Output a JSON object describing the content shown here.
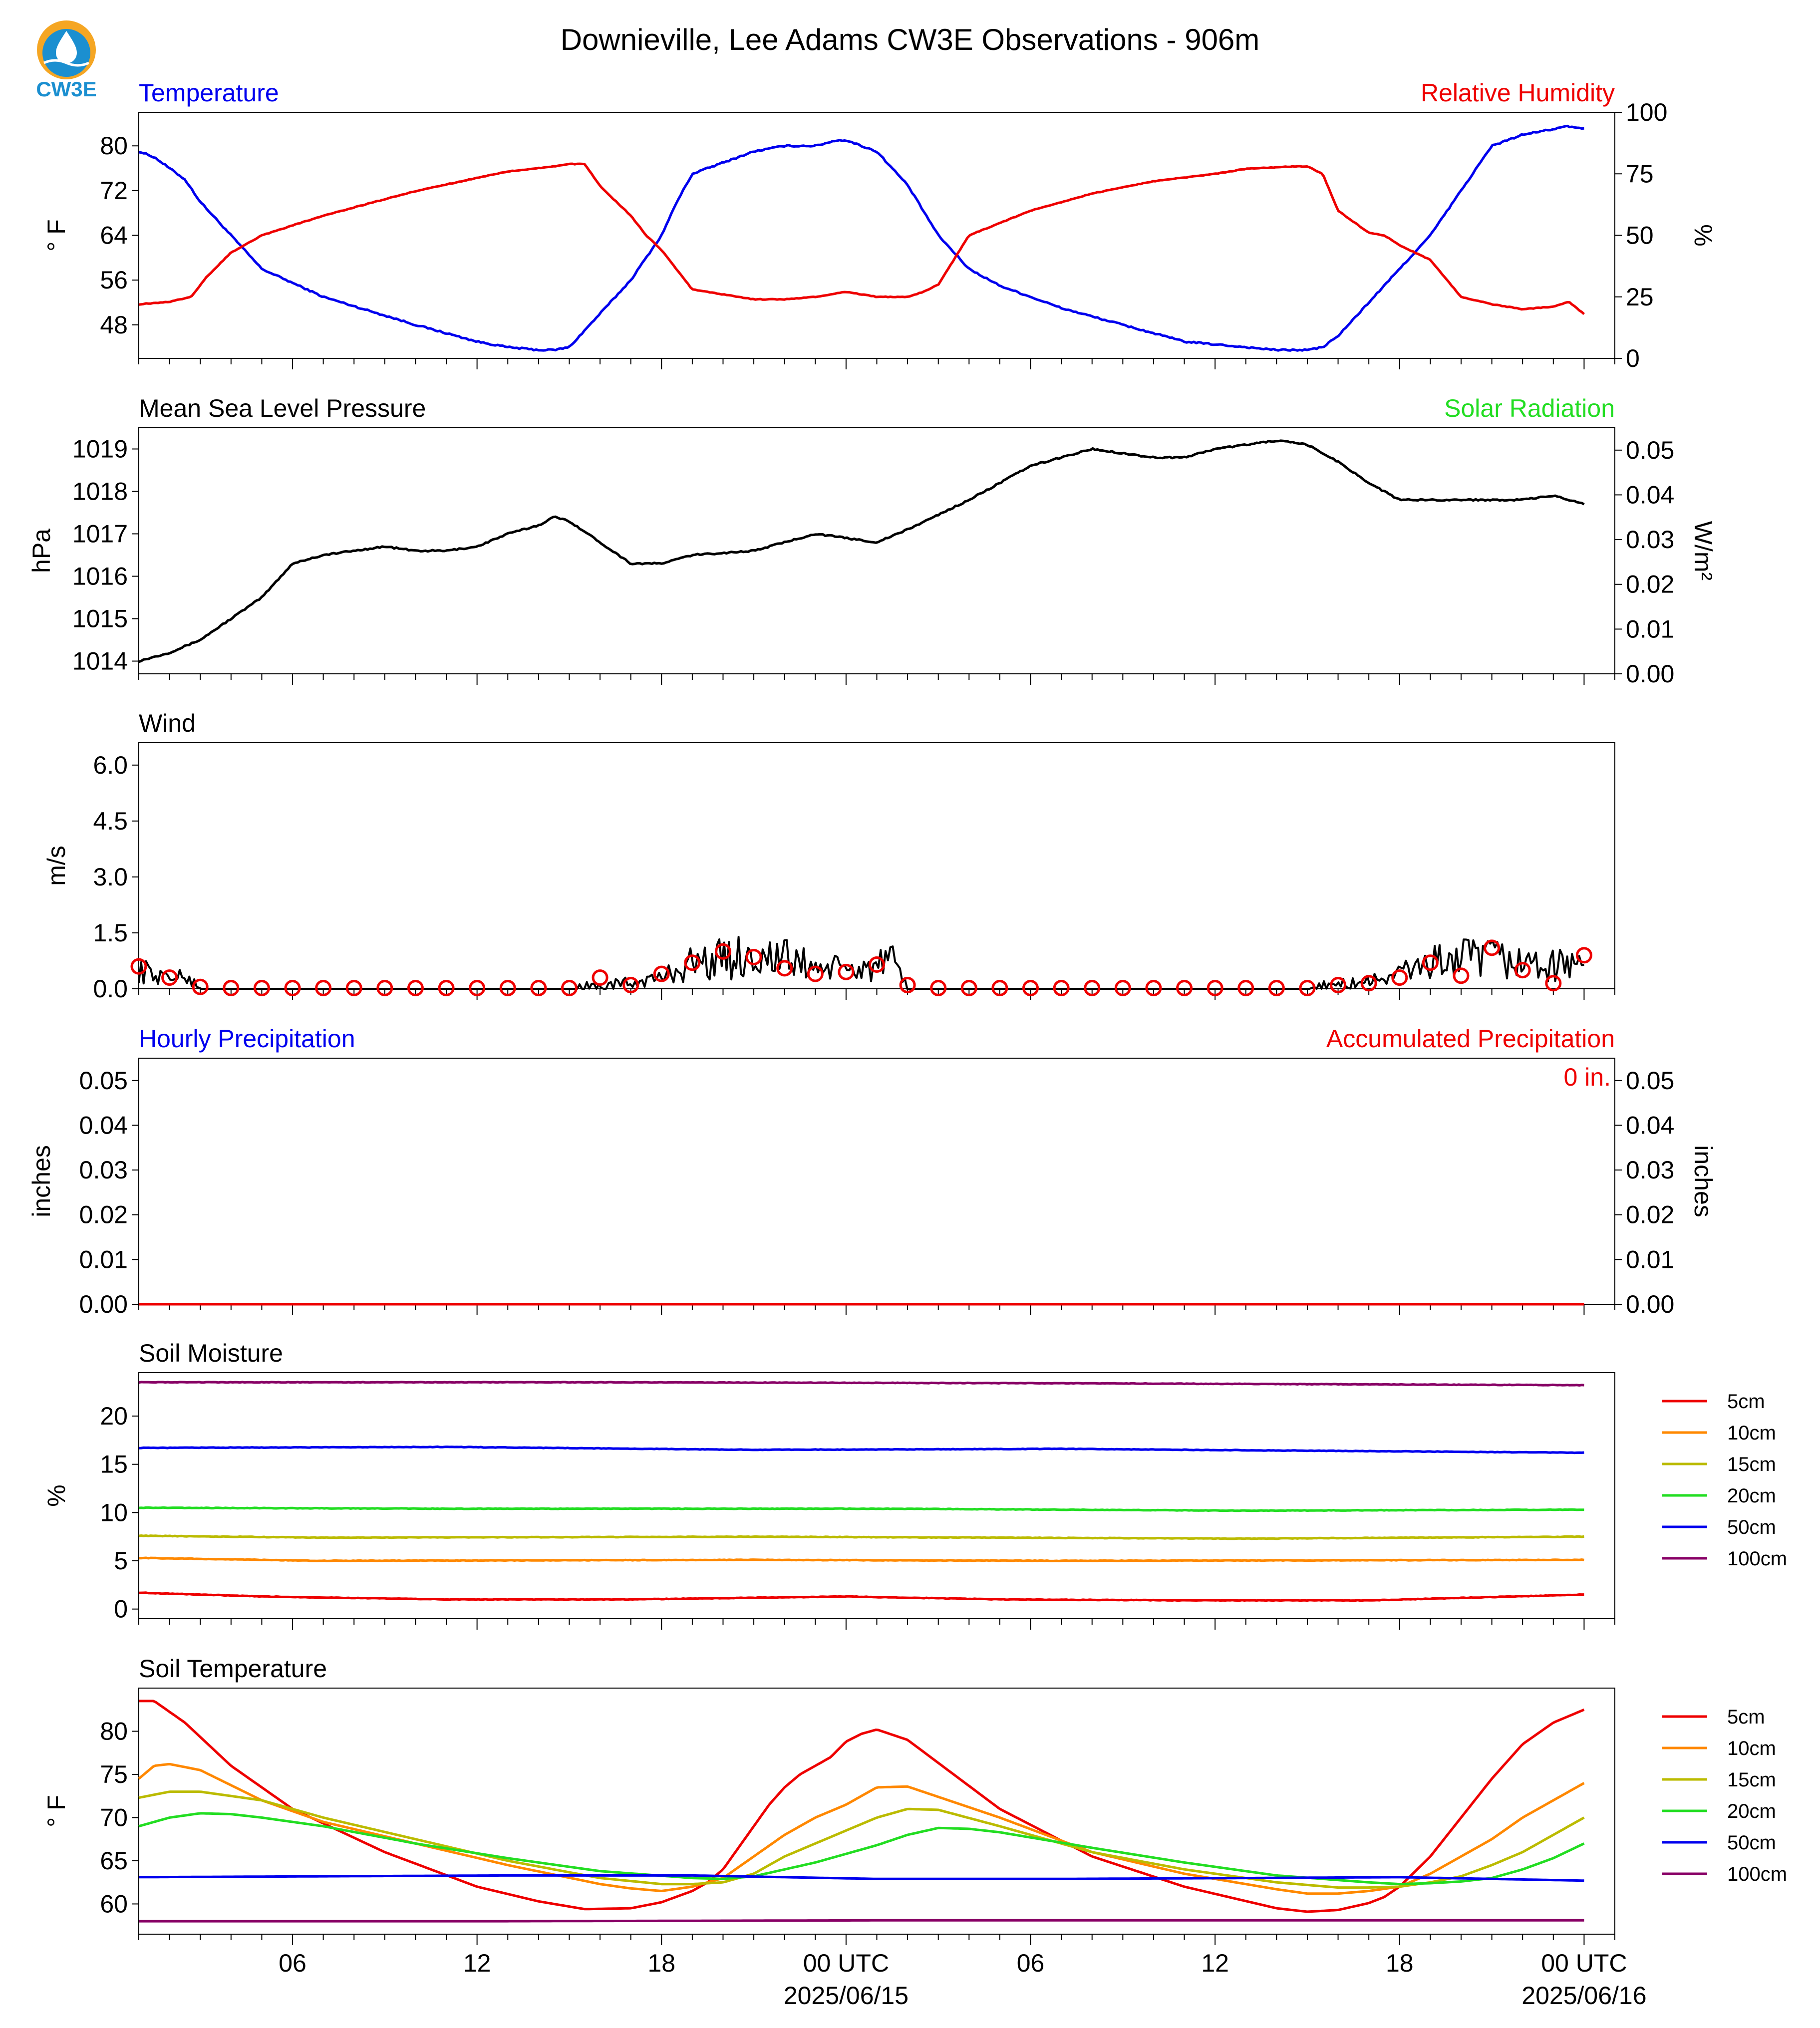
{
  "title": "Downieville, Lee Adams CW3E Observations - 906m",
  "logo": {
    "text": "CW3E",
    "icon": "water-drop-logo"
  },
  "colors": {
    "blue": "#0000ee",
    "red": "#ee0000",
    "green": "#22dd22",
    "black": "#000000"
  },
  "x_axis": {
    "hour_span": 48,
    "labels": [
      {
        "t": 5,
        "label": "06"
      },
      {
        "t": 11,
        "label": "12"
      },
      {
        "t": 17,
        "label": "18"
      },
      {
        "t": 23,
        "label": "00 UTC",
        "sub": "2025/06/15"
      },
      {
        "t": 29,
        "label": "06"
      },
      {
        "t": 35,
        "label": "12"
      },
      {
        "t": 41,
        "label": "18"
      },
      {
        "t": 47,
        "label": "00 UTC",
        "sub": "2025/06/16"
      }
    ]
  },
  "panels": {
    "temperature": {
      "left_title": "Temperature",
      "right_title": "Relative Humidity",
      "left_unit": "° F",
      "right_unit": "%"
    },
    "pressure": {
      "left_title": "Mean Sea Level Pressure",
      "right_title": "Solar Radiation",
      "left_unit": "hPa",
      "right_unit": "W/m²"
    },
    "wind": {
      "left_title": "Wind",
      "left_unit": "m/s"
    },
    "precip": {
      "left_title": "Hourly Precipitation",
      "right_title": "Accumulated Precipitation",
      "left_unit": "inches",
      "right_unit": "inches",
      "accum_label": "0 in."
    },
    "soil_moisture": {
      "left_title": "Soil Moisture",
      "left_unit": "%"
    },
    "soil_temperature": {
      "left_title": "Soil Temperature",
      "left_unit": "° F"
    }
  },
  "chart_data": [
    {
      "type": "line",
      "title": "Temperature / Relative Humidity",
      "ylabel": "° F",
      "ylabel_right": "%",
      "ylim": [
        42,
        86
      ],
      "yticks": [
        48,
        56,
        64,
        72,
        80
      ],
      "ylim_right": [
        0,
        100
      ],
      "yticks_right": [
        0,
        25,
        50,
        75,
        100
      ],
      "series": [
        {
          "name": "Temperature",
          "color": "#0000ee",
          "axis": "left",
          "t": [
            0,
            0.5,
            1.5,
            2,
            3,
            4,
            6,
            9,
            11,
            12,
            13,
            13.5,
            14,
            15,
            16,
            17,
            17.5,
            18,
            20,
            21,
            22,
            22.7,
            23,
            23.5,
            24,
            25,
            26,
            27,
            28,
            30,
            32,
            34,
            36,
            37,
            38,
            38.5,
            39,
            40,
            41,
            42,
            43,
            44,
            45,
            46,
            46.5,
            47
          ],
          "v": [
            79,
            78,
            74,
            70,
            64,
            58,
            53,
            48,
            45,
            44,
            43.5,
            43.5,
            44,
            50,
            56,
            64,
            70,
            75,
            79,
            80,
            80,
            81,
            81,
            80,
            79,
            73,
            64,
            58,
            55,
            51,
            48,
            45,
            44,
            43.5,
            43.5,
            44,
            46,
            52,
            58,
            64,
            72,
            80,
            82,
            83,
            83.5,
            83
          ]
        },
        {
          "name": "Relative Humidity",
          "color": "#ee0000",
          "axis": "right",
          "t": [
            0,
            1,
            1.7,
            2.2,
            3,
            4,
            6,
            9,
            12,
            13.5,
            14,
            14.5,
            15,
            16,
            16.5,
            17,
            18,
            20,
            21,
            22,
            23,
            24,
            25,
            25.5,
            26,
            27,
            29,
            31,
            33,
            35,
            36,
            37.5,
            38,
            38.5,
            39,
            40,
            40.5,
            41,
            42,
            43,
            44,
            45,
            46,
            46.5,
            47
          ],
          "v": [
            22,
            23,
            25,
            33,
            43,
            50,
            58,
            68,
            76,
            78,
            79,
            79,
            70,
            58,
            50,
            44,
            28,
            24,
            24,
            25,
            27,
            25,
            25,
            27,
            30,
            50,
            60,
            67,
            72,
            75,
            77,
            78,
            78,
            75,
            60,
            51,
            50,
            46,
            40,
            25,
            22,
            20,
            21,
            23,
            18
          ]
        }
      ]
    },
    {
      "type": "line",
      "title": "Mean Sea Level Pressure / Solar Radiation",
      "ylabel": "hPa",
      "ylabel_right": "W/m²",
      "ylim": [
        1013.7,
        1019.5
      ],
      "yticks": [
        1014,
        1015,
        1016,
        1017,
        1018,
        1019
      ],
      "ylim_right": [
        0,
        0.055
      ],
      "yticks_right": [
        0.0,
        0.01,
        0.02,
        0.03,
        0.04,
        0.05
      ],
      "series": [
        {
          "name": "Pressure",
          "color": "#000000",
          "axis": "left",
          "t": [
            0,
            1,
            2,
            4,
            5,
            6,
            8,
            9,
            10,
            11,
            12,
            13,
            13.5,
            14,
            15,
            16,
            17,
            18,
            20,
            22,
            24,
            25,
            27,
            28,
            29,
            30,
            31,
            32,
            33,
            34,
            35,
            36,
            37,
            38,
            39,
            40,
            41,
            43,
            44,
            45,
            46,
            47
          ],
          "v": [
            1014.0,
            1014.2,
            1014.5,
            1015.5,
            1016.3,
            1016.5,
            1016.7,
            1016.6,
            1016.6,
            1016.7,
            1017.0,
            1017.2,
            1017.4,
            1017.3,
            1016.8,
            1016.3,
            1016.3,
            1016.5,
            1016.6,
            1017.0,
            1016.8,
            1017.1,
            1017.8,
            1018.2,
            1018.6,
            1018.8,
            1019.0,
            1018.9,
            1018.8,
            1018.8,
            1019.0,
            1019.1,
            1019.2,
            1019.1,
            1018.7,
            1018.2,
            1017.8,
            1017.8,
            1017.8,
            1017.8,
            1017.9,
            1017.7
          ]
        }
      ]
    },
    {
      "type": "line",
      "title": "Wind",
      "ylabel": "m/s",
      "ylim": [
        0,
        6.6
      ],
      "yticks": [
        0.0,
        1.5,
        3.0,
        4.5,
        6.0
      ],
      "series": [
        {
          "name": "Wind speed",
          "color": "#000000",
          "axis": "left",
          "noisy": true,
          "t": [
            0,
            0.5,
            1,
            1.5,
            1.8,
            2,
            14,
            15,
            16,
            17,
            17.5,
            18,
            19,
            20,
            21,
            22,
            23,
            24,
            24.5,
            25,
            38,
            39,
            40,
            41,
            41.5,
            42,
            43,
            44,
            45,
            46,
            47
          ],
          "v": [
            0.5,
            0.4,
            0.3,
            0.3,
            0.2,
            0.0,
            0.0,
            0.05,
            0.15,
            0.3,
            0.5,
            0.7,
            0.8,
            0.9,
            0.8,
            0.6,
            0.5,
            0.6,
            0.7,
            0.0,
            0.0,
            0.1,
            0.2,
            0.4,
            0.6,
            0.7,
            0.8,
            0.8,
            0.7,
            0.6,
            0.8
          ]
        },
        {
          "name": "Gust (hourly)",
          "color": "#ee0000",
          "axis": "left",
          "markers": "circle",
          "t": [
            0,
            1,
            2,
            3,
            4,
            5,
            6,
            7,
            8,
            9,
            10,
            11,
            12,
            13,
            14,
            15,
            16,
            17,
            18,
            19,
            20,
            21,
            22,
            23,
            24,
            25,
            26,
            27,
            28,
            29,
            30,
            31,
            32,
            33,
            34,
            35,
            36,
            37,
            38,
            39,
            40,
            41,
            42,
            43,
            44,
            45,
            46,
            47
          ],
          "v": [
            0.6,
            0.3,
            0.05,
            0.02,
            0.02,
            0.02,
            0.02,
            0.02,
            0.02,
            0.02,
            0.02,
            0.02,
            0.02,
            0.02,
            0.02,
            0.3,
            0.1,
            0.4,
            0.7,
            1.0,
            0.85,
            0.55,
            0.4,
            0.45,
            0.65,
            0.1,
            0.02,
            0.02,
            0.02,
            0.02,
            0.02,
            0.02,
            0.02,
            0.02,
            0.02,
            0.02,
            0.02,
            0.02,
            0.02,
            0.1,
            0.15,
            0.3,
            0.7,
            0.35,
            1.1,
            0.5,
            0.15,
            0.9
          ]
        }
      ]
    },
    {
      "type": "line",
      "title": "Hourly Precipitation / Accumulated Precipitation",
      "ylabel": "inches",
      "ylabel_right": "inches",
      "ylim": [
        0,
        0.055
      ],
      "yticks": [
        0.0,
        0.01,
        0.02,
        0.03,
        0.04,
        0.05
      ],
      "ylim_right": [
        0,
        0.055
      ],
      "yticks_right": [
        0.0,
        0.01,
        0.02,
        0.03,
        0.04,
        0.05
      ],
      "series": [
        {
          "name": "Hourly Precipitation",
          "color": "#0000ee",
          "axis": "left",
          "t": [
            0,
            47
          ],
          "v": [
            0,
            0
          ]
        },
        {
          "name": "Accumulated Precipitation",
          "color": "#ee0000",
          "axis": "right",
          "t": [
            0,
            47
          ],
          "v": [
            0,
            0
          ]
        }
      ]
    },
    {
      "type": "line",
      "title": "Soil Moisture",
      "ylabel": "%",
      "ylim": [
        -1,
        24.5
      ],
      "yticks": [
        0,
        5,
        10,
        15,
        20
      ],
      "legend": "right",
      "series": [
        {
          "name": "5cm",
          "color": "#ee0000",
          "t": [
            0,
            4,
            10,
            16,
            23,
            28,
            34,
            40,
            47
          ],
          "v": [
            1.7,
            1.3,
            1.0,
            1.0,
            1.3,
            1.0,
            0.9,
            0.9,
            1.5
          ]
        },
        {
          "name": "10cm",
          "color": "#ff8800",
          "t": [
            0,
            6,
            20,
            30,
            47
          ],
          "v": [
            5.3,
            5.0,
            5.1,
            5.0,
            5.1
          ]
        },
        {
          "name": "15cm",
          "color": "#bbbb00",
          "t": [
            0,
            6,
            20,
            36,
            47
          ],
          "v": [
            7.6,
            7.4,
            7.5,
            7.3,
            7.5
          ]
        },
        {
          "name": "20cm",
          "color": "#22dd22",
          "t": [
            0,
            10,
            24,
            36,
            47
          ],
          "v": [
            10.5,
            10.4,
            10.4,
            10.2,
            10.3
          ]
        },
        {
          "name": "50cm",
          "color": "#0000ee",
          "t": [
            0,
            10,
            20,
            30,
            47
          ],
          "v": [
            16.7,
            16.8,
            16.5,
            16.6,
            16.2
          ]
        },
        {
          "name": "100cm",
          "color": "#880066",
          "t": [
            0,
            15,
            30,
            47
          ],
          "v": [
            23.5,
            23.5,
            23.4,
            23.2
          ]
        }
      ]
    },
    {
      "type": "line",
      "title": "Soil Temperature",
      "ylabel": "° F",
      "ylim": [
        56.5,
        85
      ],
      "yticks": [
        60,
        65,
        70,
        75,
        80
      ],
      "legend": "right",
      "series": [
        {
          "name": "5cm",
          "color": "#ee0000",
          "t": [
            0,
            0.5,
            1.5,
            3,
            5,
            8,
            11,
            13,
            14.5,
            16,
            17,
            18,
            18.5,
            19,
            19.5,
            20,
            20.5,
            21,
            21.5,
            22,
            22.5,
            23,
            23.5,
            24,
            25,
            28,
            31,
            34,
            37,
            38,
            39,
            40,
            40.5,
            41,
            42,
            43,
            44,
            45,
            46,
            47
          ],
          "v": [
            83.5,
            83.5,
            81,
            76,
            71,
            66,
            62,
            60.3,
            59.4,
            59.5,
            60.2,
            61.5,
            62.5,
            64,
            66.5,
            69,
            71.5,
            73.5,
            75,
            76,
            77,
            78.8,
            79.7,
            80.2,
            79,
            71,
            65.5,
            62,
            59.5,
            59.1,
            59.3,
            60.1,
            60.8,
            62,
            65.5,
            70,
            74.5,
            78.5,
            81,
            82.5
          ]
        },
        {
          "name": "10cm",
          "color": "#ff8800",
          "t": [
            0,
            0.5,
            1,
            2,
            4,
            6,
            9,
            12,
            15,
            16,
            17,
            18,
            19,
            20,
            21,
            22,
            23,
            24,
            25,
            28,
            31,
            34,
            37,
            38,
            39,
            40,
            41,
            42,
            43,
            44,
            45,
            46,
            47
          ],
          "v": [
            74.5,
            76,
            76.2,
            75.5,
            72,
            69.5,
            67,
            64.5,
            62.3,
            61.8,
            61.5,
            62,
            63,
            65.5,
            68,
            70,
            71.5,
            73.5,
            73.6,
            70,
            66,
            63.5,
            61.7,
            61.2,
            61.2,
            61.5,
            62,
            63.5,
            65.5,
            67.5,
            70,
            72,
            74
          ]
        },
        {
          "name": "15cm",
          "color": "#bbbb00",
          "t": [
            0,
            1,
            2,
            4,
            6,
            9,
            12,
            15,
            17,
            18,
            19,
            20,
            21,
            22,
            23,
            24,
            25,
            26,
            28,
            31,
            34,
            37,
            39,
            40,
            41,
            42,
            43,
            44,
            45,
            46,
            47
          ],
          "v": [
            72.3,
            73,
            73,
            72,
            70,
            67.5,
            65,
            63,
            62.3,
            62.3,
            62.5,
            63.5,
            65.5,
            67,
            68.5,
            70,
            71,
            70.9,
            69,
            66,
            64,
            62.5,
            61.9,
            61.9,
            62,
            62.5,
            63.2,
            64.5,
            66,
            68,
            70
          ]
        },
        {
          "name": "20cm",
          "color": "#22dd22",
          "t": [
            0,
            1,
            2,
            3,
            4,
            6,
            9,
            12,
            15,
            18,
            19,
            20,
            22,
            24,
            25,
            26,
            27,
            28,
            31,
            34,
            37,
            40,
            41,
            42,
            43,
            44,
            45,
            46,
            47
          ],
          "v": [
            69,
            70,
            70.5,
            70.4,
            70,
            69,
            67,
            65.3,
            63.8,
            63,
            62.9,
            63.2,
            64.8,
            66.8,
            68,
            68.8,
            68.7,
            68.3,
            66.5,
            64.8,
            63.3,
            62.5,
            62.3,
            62.4,
            62.6,
            63,
            64,
            65.3,
            67
          ]
        },
        {
          "name": "50cm",
          "color": "#0000ee",
          "t": [
            0,
            6,
            12,
            18,
            24,
            30,
            36,
            41,
            47
          ],
          "v": [
            63.1,
            63.2,
            63.3,
            63.3,
            62.9,
            62.9,
            63.0,
            63.1,
            62.7
          ]
        },
        {
          "name": "100cm",
          "color": "#880066",
          "t": [
            0,
            12,
            24,
            36,
            47
          ],
          "v": [
            58.0,
            58.0,
            58.1,
            58.1,
            58.1
          ]
        }
      ]
    }
  ]
}
